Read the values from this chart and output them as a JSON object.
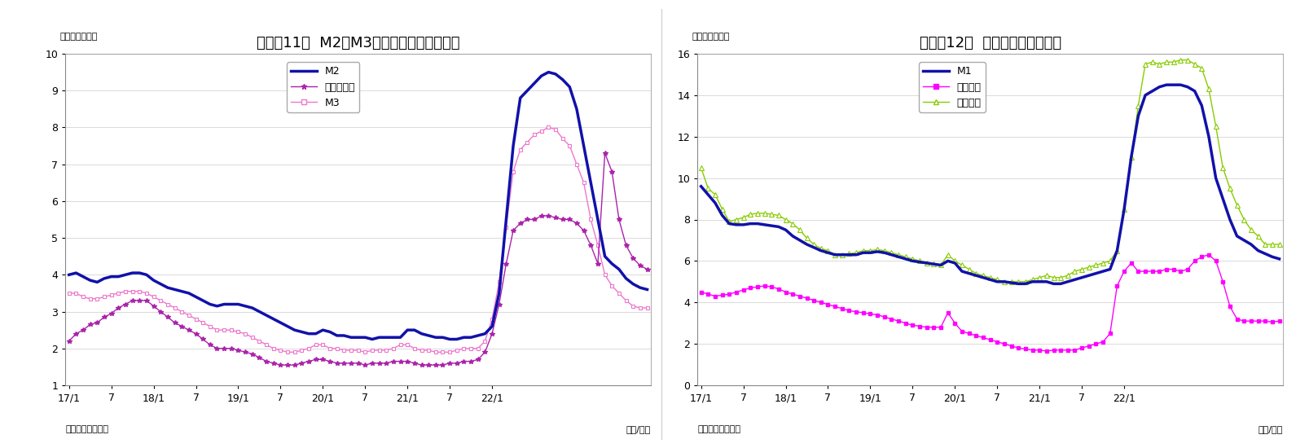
{
  "chart1": {
    "title": "（図表11）  M2、M3、広義流動性の伸び率",
    "ylabel": "（前年比、％）",
    "xlabel": "（年/月）",
    "source": "（資料）日本銀行",
    "ylim": [
      1,
      10
    ],
    "yticks": [
      1,
      2,
      3,
      4,
      5,
      6,
      7,
      8,
      9,
      10
    ],
    "M2": [
      4.0,
      4.05,
      3.95,
      3.85,
      3.8,
      3.9,
      3.95,
      3.95,
      4.0,
      4.05,
      4.05,
      4.0,
      3.85,
      3.75,
      3.65,
      3.6,
      3.55,
      3.5,
      3.4,
      3.3,
      3.2,
      3.15,
      3.2,
      3.2,
      3.2,
      3.15,
      3.1,
      3.0,
      2.9,
      2.8,
      2.7,
      2.6,
      2.5,
      2.45,
      2.4,
      2.4,
      2.5,
      2.45,
      2.35,
      2.35,
      2.3,
      2.3,
      2.3,
      2.25,
      2.3,
      2.3,
      2.3,
      2.3,
      2.5,
      2.5,
      2.4,
      2.35,
      2.3,
      2.3,
      2.25,
      2.25,
      2.3,
      2.3,
      2.35,
      2.4,
      2.6,
      3.5,
      5.5,
      7.5,
      8.8,
      9.0,
      9.2,
      9.4,
      9.5,
      9.45,
      9.3,
      9.1,
      8.5,
      7.5,
      6.5,
      5.5,
      4.5,
      4.3,
      4.15,
      3.9,
      3.75,
      3.65,
      3.6
    ],
    "広義流動性": [
      2.2,
      2.4,
      2.5,
      2.65,
      2.7,
      2.85,
      2.95,
      3.1,
      3.2,
      3.3,
      3.3,
      3.3,
      3.15,
      3.0,
      2.85,
      2.7,
      2.6,
      2.5,
      2.4,
      2.25,
      2.1,
      2.0,
      2.0,
      2.0,
      1.95,
      1.9,
      1.85,
      1.75,
      1.65,
      1.6,
      1.55,
      1.55,
      1.55,
      1.6,
      1.65,
      1.7,
      1.7,
      1.65,
      1.6,
      1.6,
      1.6,
      1.6,
      1.55,
      1.6,
      1.6,
      1.6,
      1.65,
      1.65,
      1.65,
      1.6,
      1.55,
      1.55,
      1.55,
      1.55,
      1.6,
      1.6,
      1.65,
      1.65,
      1.7,
      1.9,
      2.4,
      3.2,
      4.3,
      5.2,
      5.4,
      5.5,
      5.5,
      5.6,
      5.6,
      5.55,
      5.5,
      5.5,
      5.4,
      5.2,
      4.8,
      4.3,
      7.3,
      6.8,
      5.5,
      4.8,
      4.45,
      4.25,
      4.15
    ],
    "M3": [
      3.5,
      3.5,
      3.4,
      3.35,
      3.35,
      3.4,
      3.45,
      3.5,
      3.55,
      3.55,
      3.55,
      3.5,
      3.4,
      3.3,
      3.2,
      3.1,
      3.0,
      2.9,
      2.8,
      2.7,
      2.6,
      2.5,
      2.5,
      2.5,
      2.45,
      2.4,
      2.3,
      2.2,
      2.1,
      2.0,
      1.95,
      1.9,
      1.9,
      1.95,
      2.0,
      2.1,
      2.1,
      2.0,
      2.0,
      1.95,
      1.95,
      1.95,
      1.9,
      1.95,
      1.95,
      1.95,
      2.0,
      2.1,
      2.1,
      2.0,
      1.95,
      1.95,
      1.9,
      1.9,
      1.9,
      1.95,
      2.0,
      2.0,
      2.0,
      2.2,
      2.8,
      3.8,
      5.3,
      6.8,
      7.4,
      7.6,
      7.8,
      7.9,
      8.0,
      7.95,
      7.7,
      7.5,
      7.0,
      6.5,
      5.5,
      4.8,
      4.0,
      3.7,
      3.5,
      3.3,
      3.15,
      3.1,
      3.1
    ]
  },
  "chart2": {
    "title": "（図表12）  現金・預金の伸び率",
    "ylabel": "（前年比、％）",
    "xlabel": "（年/月）",
    "source": "（資料）日本銀行",
    "ylim": [
      0,
      16
    ],
    "yticks": [
      0,
      2,
      4,
      6,
      8,
      10,
      12,
      14,
      16
    ],
    "M1": [
      9.6,
      9.2,
      8.8,
      8.2,
      7.8,
      7.75,
      7.75,
      7.8,
      7.8,
      7.75,
      7.7,
      7.65,
      7.5,
      7.2,
      7.0,
      6.8,
      6.65,
      6.5,
      6.4,
      6.3,
      6.3,
      6.3,
      6.3,
      6.4,
      6.4,
      6.45,
      6.4,
      6.3,
      6.2,
      6.1,
      6.0,
      5.95,
      5.9,
      5.85,
      5.8,
      6.0,
      5.9,
      5.5,
      5.4,
      5.3,
      5.2,
      5.1,
      5.0,
      5.0,
      4.95,
      4.9,
      4.9,
      5.0,
      5.0,
      5.0,
      4.9,
      4.9,
      5.0,
      5.1,
      5.2,
      5.3,
      5.4,
      5.5,
      5.6,
      6.5,
      8.5,
      11.0,
      13.0,
      14.0,
      14.2,
      14.4,
      14.5,
      14.5,
      14.5,
      14.4,
      14.2,
      13.5,
      12.0,
      10.0,
      9.0,
      8.0,
      7.2,
      7.0,
      6.8,
      6.5,
      6.35,
      6.2,
      6.1
    ],
    "現金通貨": [
      4.5,
      4.4,
      4.3,
      4.35,
      4.4,
      4.5,
      4.6,
      4.7,
      4.75,
      4.8,
      4.75,
      4.65,
      4.5,
      4.4,
      4.3,
      4.2,
      4.1,
      4.0,
      3.9,
      3.8,
      3.7,
      3.6,
      3.55,
      3.5,
      3.45,
      3.4,
      3.3,
      3.2,
      3.1,
      3.0,
      2.9,
      2.85,
      2.8,
      2.8,
      2.8,
      3.5,
      3.0,
      2.6,
      2.5,
      2.4,
      2.3,
      2.2,
      2.1,
      2.0,
      1.9,
      1.8,
      1.75,
      1.7,
      1.7,
      1.65,
      1.7,
      1.7,
      1.7,
      1.7,
      1.8,
      1.9,
      2.0,
      2.1,
      2.5,
      4.8,
      5.5,
      5.9,
      5.5,
      5.5,
      5.5,
      5.5,
      5.6,
      5.6,
      5.5,
      5.6,
      6.0,
      6.2,
      6.3,
      6.0,
      5.0,
      3.8,
      3.2,
      3.1,
      3.1,
      3.1,
      3.1,
      3.05,
      3.1
    ],
    "預金通貨": [
      10.5,
      9.5,
      9.2,
      8.5,
      7.9,
      8.0,
      8.1,
      8.25,
      8.3,
      8.3,
      8.25,
      8.2,
      8.0,
      7.8,
      7.5,
      7.1,
      6.8,
      6.6,
      6.5,
      6.3,
      6.3,
      6.35,
      6.4,
      6.5,
      6.5,
      6.55,
      6.5,
      6.4,
      6.3,
      6.2,
      6.1,
      6.0,
      5.9,
      5.85,
      5.8,
      6.3,
      6.0,
      5.8,
      5.6,
      5.4,
      5.3,
      5.2,
      5.1,
      5.0,
      5.0,
      5.0,
      5.0,
      5.1,
      5.2,
      5.3,
      5.2,
      5.2,
      5.3,
      5.5,
      5.6,
      5.7,
      5.8,
      5.9,
      6.0,
      6.5,
      8.5,
      11.0,
      13.5,
      15.5,
      15.6,
      15.5,
      15.6,
      15.6,
      15.7,
      15.7,
      15.5,
      15.3,
      14.3,
      12.5,
      10.5,
      9.5,
      8.7,
      8.0,
      7.5,
      7.2,
      6.8,
      6.8,
      6.8
    ]
  },
  "x_ticks_labels": [
    "17/1",
    "7",
    "18/1",
    "7",
    "19/1",
    "7",
    "20/1",
    "7",
    "21/1",
    "7",
    "22/1"
  ],
  "colors": {
    "M2": "#1111AA",
    "広義流動性": "#AA22AA",
    "M3": "#EE77CC",
    "M1": "#1111AA",
    "現金通貨": "#FF00FF",
    "預金通貨": "#88CC00"
  },
  "bg_color": "#FFFFFF"
}
